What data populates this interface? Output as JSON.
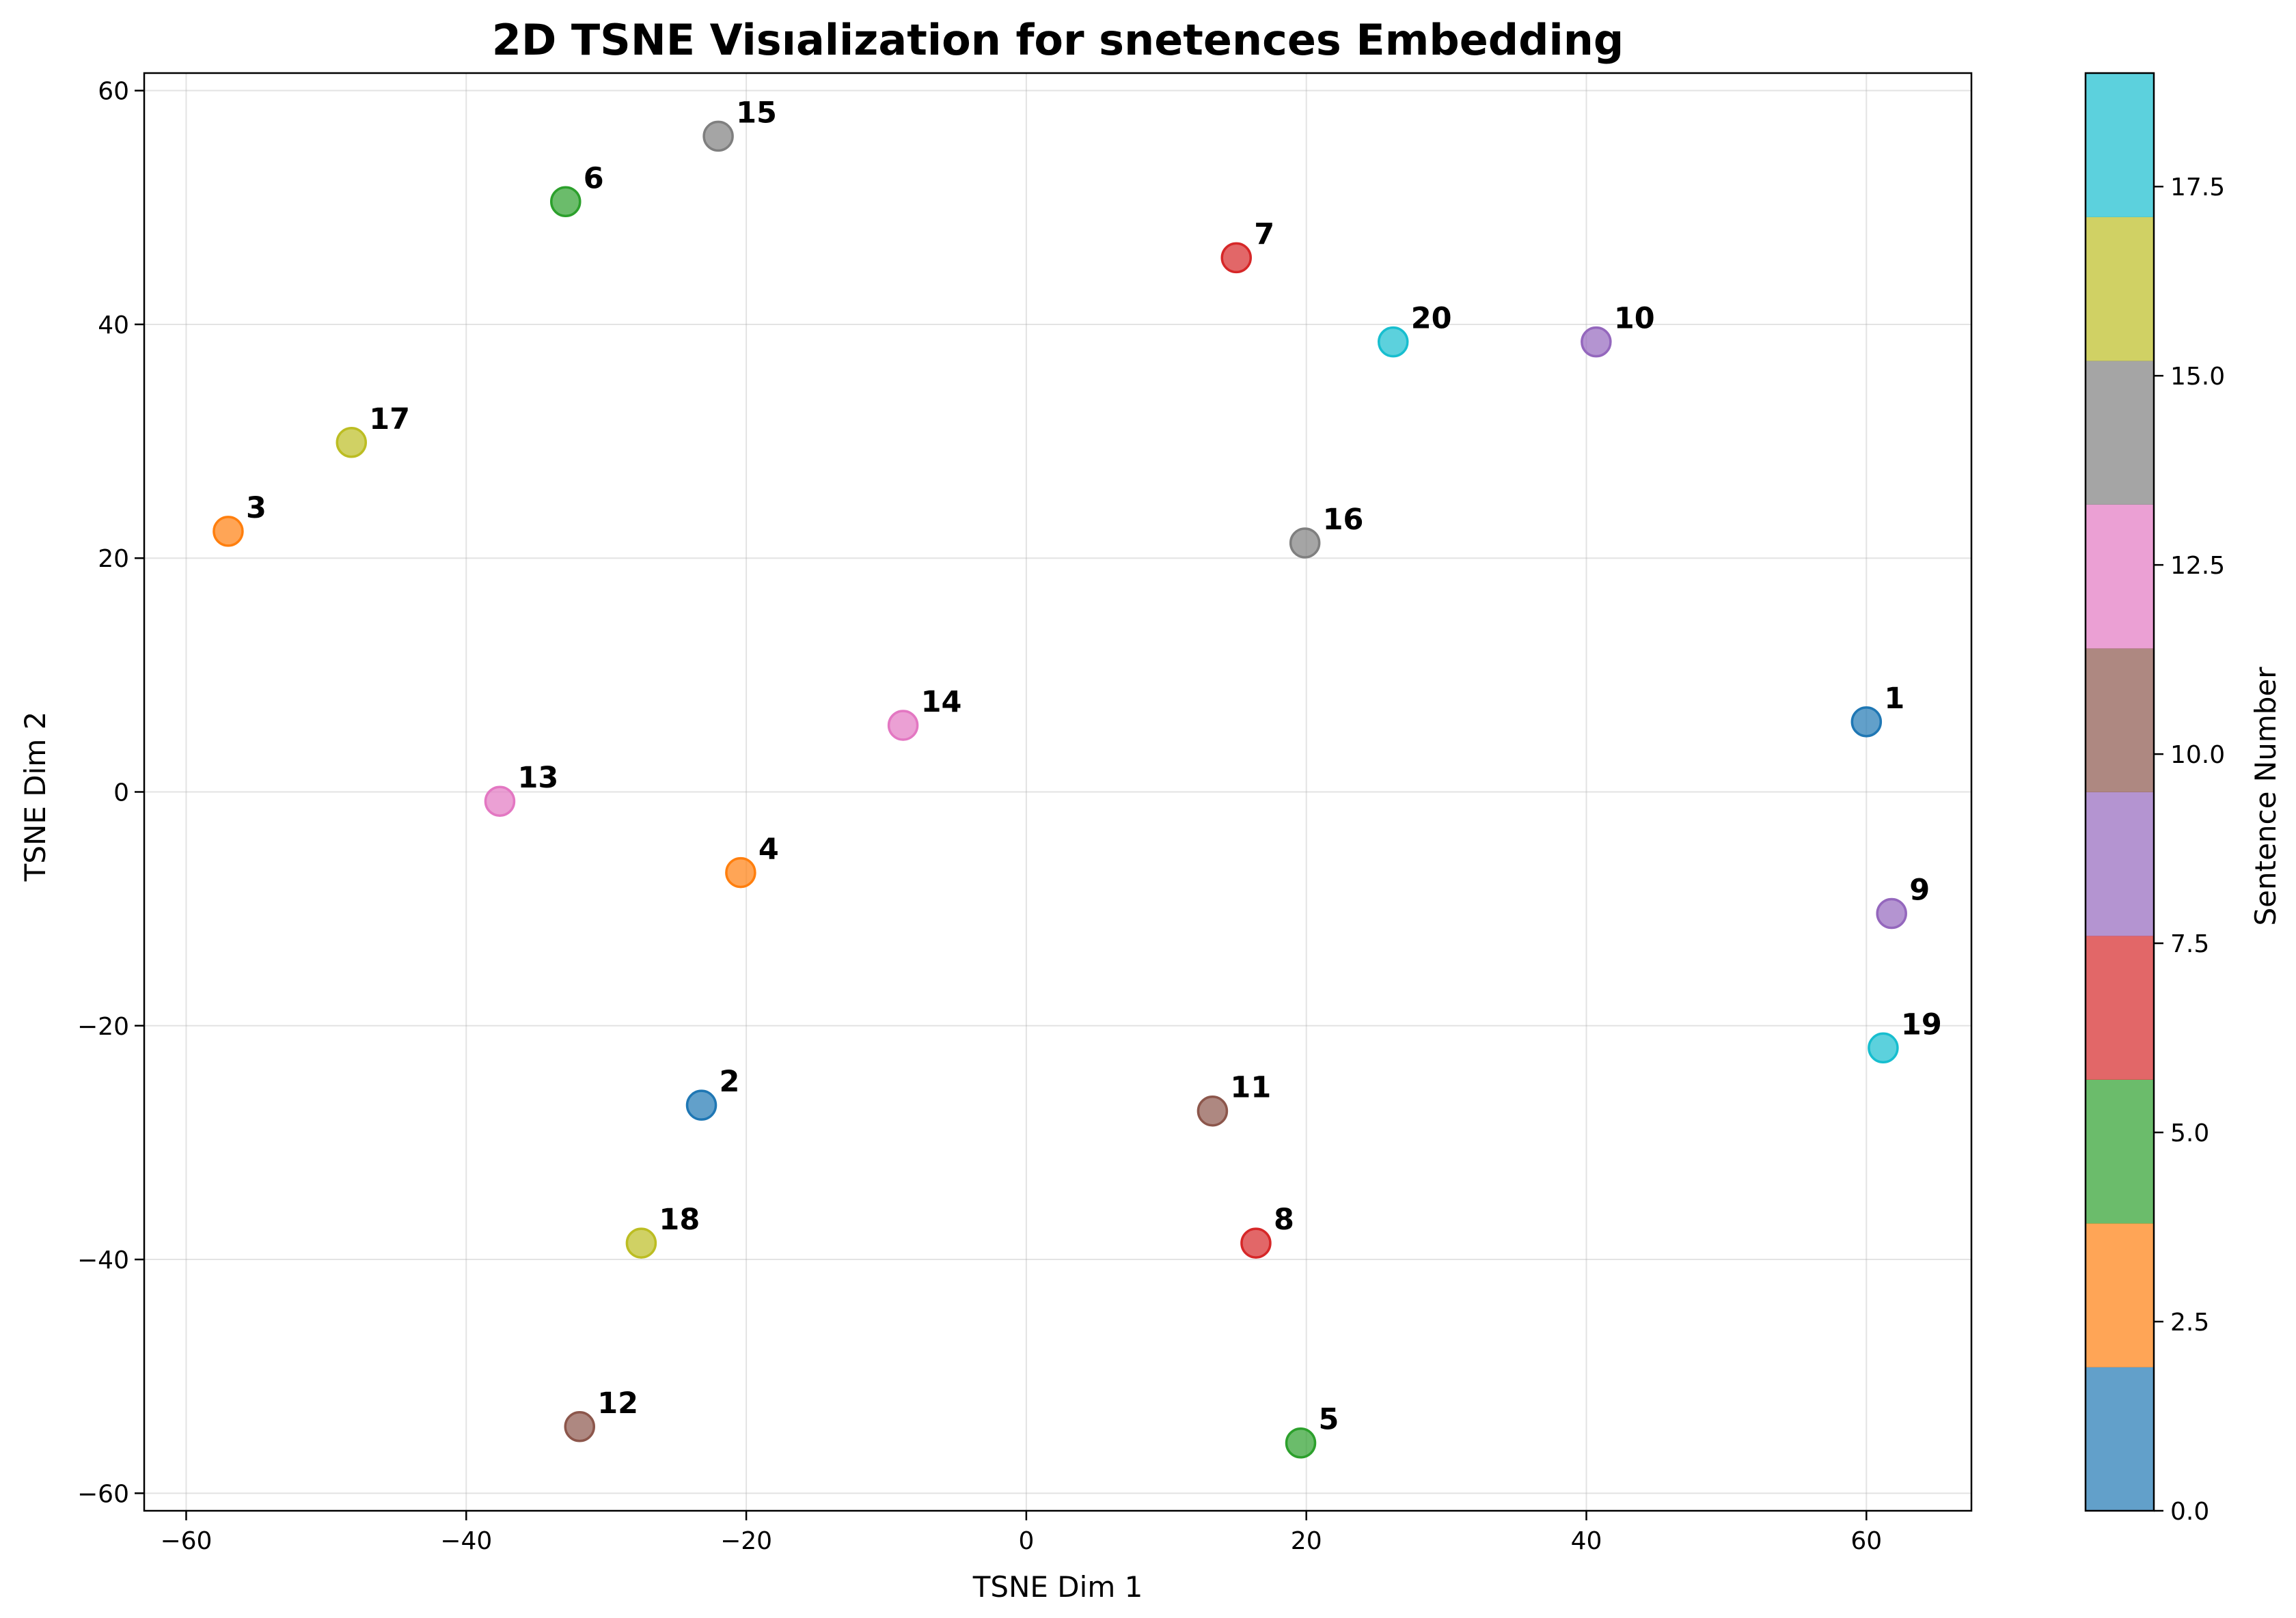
{
  "chart_data": {
    "type": "scatter",
    "title": "2D TSNE Visıalization for snetences Embedding",
    "xlabel": "TSNE Dim 1",
    "ylabel": "TSNE Dim 2",
    "xlim": [
      -63,
      67.5
    ],
    "ylim": [
      -61.5,
      61.5
    ],
    "xticks": [
      -60,
      -40,
      -20,
      0,
      20,
      40,
      60
    ],
    "yticks": [
      -60,
      -40,
      -20,
      0,
      20,
      40,
      60
    ],
    "grid": true,
    "points": [
      {
        "label": "1",
        "x": 60.0,
        "y": 6.0,
        "c": 0
      },
      {
        "label": "2",
        "x": -23.2,
        "y": -26.8,
        "c": 1
      },
      {
        "label": "3",
        "x": -57.0,
        "y": 22.3,
        "c": 2
      },
      {
        "label": "4",
        "x": -20.4,
        "y": -6.9,
        "c": 3
      },
      {
        "label": "5",
        "x": 19.6,
        "y": -55.7,
        "c": 4
      },
      {
        "label": "6",
        "x": -32.9,
        "y": 50.5,
        "c": 5
      },
      {
        "label": "7",
        "x": 15.0,
        "y": 45.7,
        "c": 6
      },
      {
        "label": "8",
        "x": 16.4,
        "y": -38.6,
        "c": 7
      },
      {
        "label": "9",
        "x": 61.8,
        "y": -10.4,
        "c": 8
      },
      {
        "label": "10",
        "x": 40.7,
        "y": 38.5,
        "c": 9
      },
      {
        "label": "11",
        "x": 13.3,
        "y": -27.3,
        "c": 10
      },
      {
        "label": "12",
        "x": -31.9,
        "y": -54.3,
        "c": 11
      },
      {
        "label": "13",
        "x": -37.6,
        "y": -0.8,
        "c": 12
      },
      {
        "label": "14",
        "x": -8.8,
        "y": 5.7,
        "c": 13
      },
      {
        "label": "15",
        "x": -22.0,
        "y": 56.1,
        "c": 14
      },
      {
        "label": "16",
        "x": 19.9,
        "y": 21.3,
        "c": 15
      },
      {
        "label": "17",
        "x": -48.2,
        "y": 29.9,
        "c": 16
      },
      {
        "label": "18",
        "x": -27.5,
        "y": -38.6,
        "c": 17
      },
      {
        "label": "19",
        "x": 61.2,
        "y": -21.9,
        "c": 18
      },
      {
        "label": "20",
        "x": 26.2,
        "y": 38.5,
        "c": 19
      }
    ],
    "colorbar": {
      "label": "Sentence Number",
      "range": [
        0,
        19
      ],
      "ticks": [
        0.0,
        2.5,
        5.0,
        7.5,
        10.0,
        12.5,
        15.0,
        17.5
      ],
      "tick_labels": [
        "0.0",
        "2.5",
        "5.0",
        "7.5",
        "10.0",
        "12.5",
        "15.0",
        "17.5"
      ],
      "colors": [
        "#1f77b4",
        "#ff7f0e",
        "#2ca02c",
        "#d62728",
        "#9467bd",
        "#8c564b",
        "#e377c2",
        "#7f7f7f",
        "#bcbd22",
        "#17becf"
      ],
      "alpha": 0.7
    }
  }
}
